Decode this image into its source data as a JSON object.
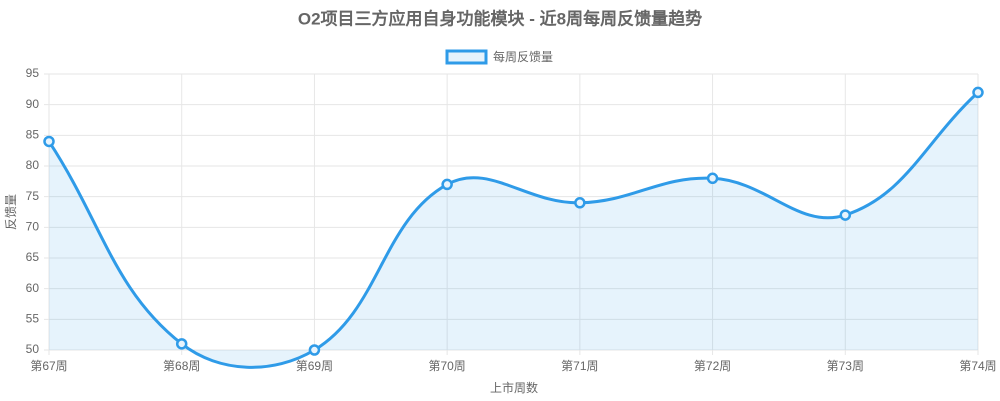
{
  "chart_data": {
    "type": "line",
    "title": "O2项目三方应用自身功能模块 - 近8周每周反馈量趋势",
    "categories": [
      "第67周",
      "第68周",
      "第69周",
      "第70周",
      "第71周",
      "第72周",
      "第73周",
      "第74周"
    ],
    "series": [
      {
        "name": "每周反馈量",
        "color": "#2f9be8",
        "values": [
          84,
          51,
          50,
          77,
          74,
          78,
          72,
          92
        ]
      }
    ],
    "xlabel": "上市周数",
    "ylabel": "反馈量",
    "ylim": [
      50,
      95
    ],
    "yticks": [
      50,
      55,
      60,
      65,
      70,
      75,
      80,
      85,
      90,
      95
    ],
    "grid": true,
    "legend": "top"
  }
}
